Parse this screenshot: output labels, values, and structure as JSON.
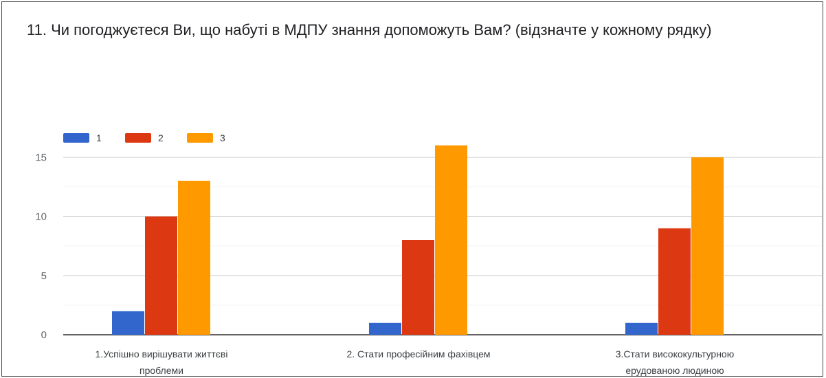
{
  "title": "11. Чи погоджуєтеся Ви, що набуті в МДПУ знання  допоможуть Вам?  (відзначте у кожному рядку)",
  "chart_data": {
    "type": "bar",
    "title": "11. Чи погоджуєтеся Ви, що набуті в МДПУ знання  допоможуть Вам?  (відзначте у кожному рядку)",
    "categories": [
      [
        "1.Успішно вирішувати життєві",
        "проблеми"
      ],
      [
        "2. Стати професійним фахівцем"
      ],
      [
        "3.Стати висококультурною",
        "ерудованою людиною"
      ]
    ],
    "series": [
      {
        "name": "1",
        "color": "#3366cc",
        "values": [
          2,
          1,
          1
        ]
      },
      {
        "name": "2",
        "color": "#dc3912",
        "values": [
          10,
          8,
          9
        ]
      },
      {
        "name": "3",
        "color": "#ff9900",
        "values": [
          13,
          16,
          15
        ]
      }
    ],
    "yticks": [
      0,
      5,
      10,
      15
    ],
    "ylim": [
      0,
      17
    ],
    "legend_position": "top-left",
    "grid": true
  }
}
